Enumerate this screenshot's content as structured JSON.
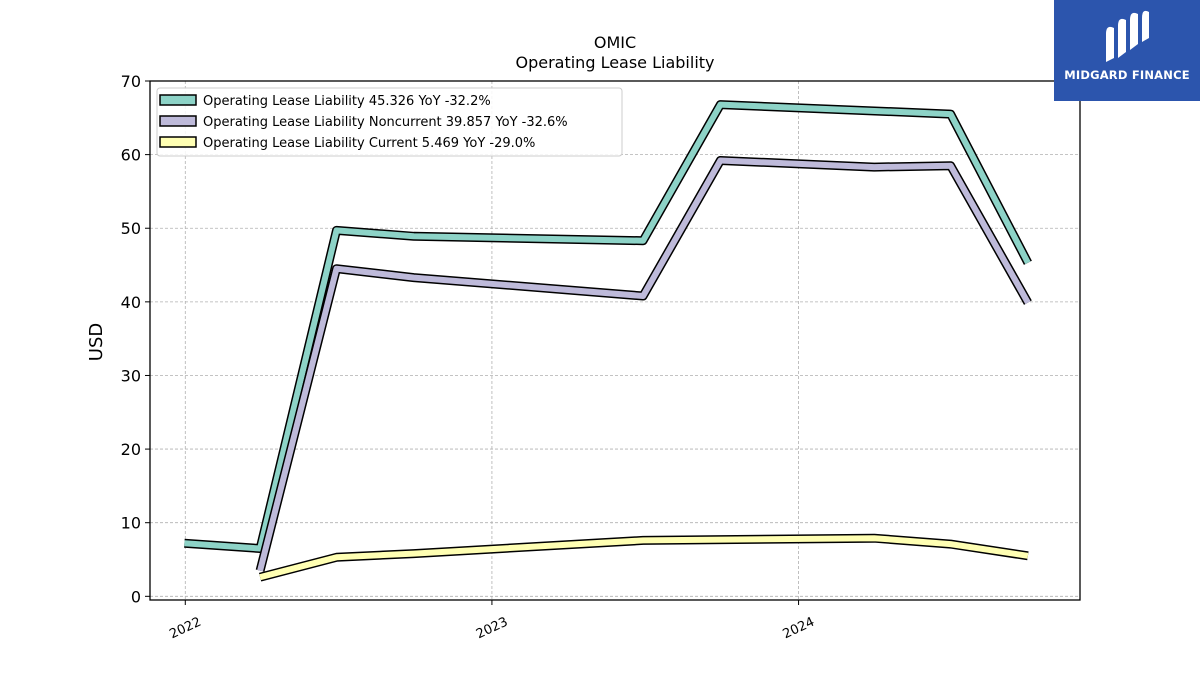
{
  "brand": {
    "name": "MIDGARD FINANCE",
    "bg_color": "#2c55ad"
  },
  "chart_data": {
    "type": "line",
    "title": "OMIC",
    "subtitle": "Operating Lease Liability",
    "xlabel": "",
    "ylabel": "USD",
    "ylim": [
      -0.5,
      70
    ],
    "yticks": [
      0,
      10,
      20,
      30,
      40,
      50,
      60,
      70
    ],
    "xlim": [
      "2021-11-20",
      "2024-12-01"
    ],
    "xticks": [
      "2022",
      "2023",
      "2024"
    ],
    "grid": true,
    "legend_position": "upper-left",
    "series": [
      {
        "name": "Operating Lease Liability  45.326 YoY -32.2%",
        "color": "#8dd3c7",
        "points": [
          [
            "2021-12-31",
            7.2
          ],
          [
            "2022-03-31",
            6.5
          ],
          [
            "2022-06-30",
            49.7
          ],
          [
            "2022-09-30",
            48.9
          ],
          [
            "2023-06-30",
            48.3
          ],
          [
            "2023-09-30",
            66.8
          ],
          [
            "2024-06-30",
            65.5
          ],
          [
            "2024-09-30",
            45.3
          ]
        ]
      },
      {
        "name": "Operating Lease Liability Noncurrent  39.857 YoY -32.6%",
        "color": "#bebada",
        "points": [
          [
            "2022-03-31",
            3.5
          ],
          [
            "2022-06-30",
            44.5
          ],
          [
            "2022-09-30",
            43.3
          ],
          [
            "2023-06-30",
            40.8
          ],
          [
            "2023-09-30",
            59.2
          ],
          [
            "2024-03-31",
            58.3
          ],
          [
            "2024-06-30",
            58.5
          ],
          [
            "2024-09-30",
            39.9
          ]
        ]
      },
      {
        "name": "Operating Lease Liability Current  5.469 YoY -29.0%",
        "color": "#ffffb3",
        "points": [
          [
            "2022-03-31",
            2.6
          ],
          [
            "2022-06-30",
            5.3
          ],
          [
            "2022-09-30",
            5.8
          ],
          [
            "2023-06-30",
            7.6
          ],
          [
            "2024-03-31",
            7.9
          ],
          [
            "2024-06-30",
            7.1
          ],
          [
            "2024-09-30",
            5.5
          ]
        ]
      }
    ]
  }
}
